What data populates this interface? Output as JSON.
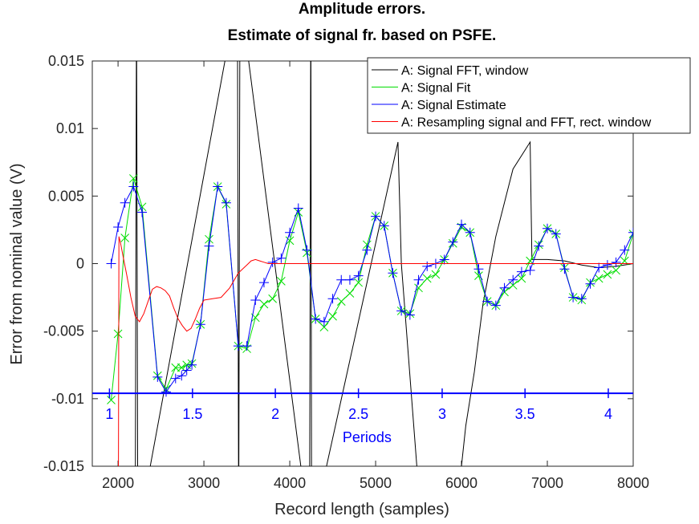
{
  "chart_data": {
    "type": "line",
    "title": [
      "Amplitude errors.",
      "Estimate of signal fr. based on PSFE."
    ],
    "xlabel": "Record length (samples)",
    "ylabel": "Error from nominal value (V)",
    "xlim": [
      1700,
      8000
    ],
    "ylim": [
      -0.015,
      0.015
    ],
    "xticks": [
      2000,
      3000,
      4000,
      5000,
      6000,
      7000,
      8000
    ],
    "xtick_labels": [
      "2000",
      "3000",
      "4000",
      "5000",
      "6000",
      "7000",
      "8000"
    ],
    "yticks": [
      -0.015,
      -0.01,
      -0.005,
      0,
      0.005,
      0.01,
      0.015
    ],
    "ytick_labels": [
      "-0.015",
      "-0.01",
      "-0.005",
      "0",
      "0.005",
      "0.01",
      "0.015"
    ],
    "legend_position": "top-right",
    "periods_axis": {
      "label": "Periods",
      "y": -0.0096,
      "ticks": [
        {
          "x": 1900,
          "label": "1"
        },
        {
          "x": 2867,
          "label": "1.5"
        },
        {
          "x": 3832,
          "label": "2"
        },
        {
          "x": 4800,
          "label": "2.5"
        },
        {
          "x": 5775,
          "label": "3"
        },
        {
          "x": 6740,
          "label": "3.5"
        },
        {
          "x": 7710,
          "label": "4"
        }
      ]
    },
    "series": [
      {
        "name": "A: Signal FFT, window",
        "color": "#000000",
        "marker": "none",
        "x": [
          2200,
          2215,
          2230,
          3390,
          3405,
          3420,
          4230,
          4245,
          4255,
          5260,
          5300,
          5480,
          5560,
          6000,
          6050,
          6150,
          6250,
          6400,
          6600,
          6800,
          6820,
          7000,
          7200,
          7400,
          7600,
          7800,
          8000
        ],
        "y": [
          -0.02,
          0.02,
          -0.02,
          0.02,
          -0.02,
          0.02,
          -0.02,
          0.02,
          -0.02,
          0.009,
          0.0,
          -0.015,
          -0.02,
          -0.015,
          -0.012,
          -0.008,
          -0.003,
          0.002,
          0.007,
          0.009,
          0.0003,
          0.0003,
          0.0002,
          -0.0001,
          -0.0003,
          -0.0002,
          0.0
        ]
      },
      {
        "name": "A: Signal Fit",
        "color": "#00dd00",
        "marker": "x",
        "x": [
          1920,
          2000,
          2080,
          2180,
          2280,
          2460,
          2560,
          2670,
          2740,
          2800,
          2860,
          2960,
          3060,
          3160,
          3260,
          3400,
          3500,
          3600,
          3700,
          3800,
          3900,
          4000,
          4100,
          4200,
          4300,
          4400,
          4500,
          4600,
          4700,
          4800,
          4900,
          5000,
          5100,
          5200,
          5300,
          5400,
          5500,
          5600,
          5700,
          5800,
          5900,
          6000,
          6100,
          6200,
          6300,
          6400,
          6500,
          6600,
          6700,
          6800,
          6900,
          7000,
          7100,
          7200,
          7300,
          7400,
          7500,
          7600,
          7700,
          7800,
          7900,
          8000
        ],
        "y": [
          -0.0101,
          -0.0052,
          0.0019,
          0.0063,
          0.0042,
          -0.0083,
          -0.0093,
          -0.0077,
          -0.0077,
          -0.0075,
          -0.0074,
          -0.0045,
          0.0018,
          0.0057,
          0.0044,
          -0.0061,
          -0.0063,
          -0.004,
          -0.003,
          -0.0026,
          -0.0013,
          0.0017,
          0.0038,
          0.0008,
          -0.0041,
          -0.0047,
          -0.0039,
          -0.0028,
          -0.0022,
          -0.0014,
          0.0014,
          0.0035,
          0.0028,
          -0.0007,
          -0.0035,
          -0.0037,
          -0.0018,
          -0.0011,
          -0.0008,
          0.0003,
          0.0015,
          0.0027,
          0.0023,
          -0.0009,
          -0.0028,
          -0.0031,
          -0.0021,
          -0.0016,
          -0.0011,
          0.0002,
          0.0014,
          0.0026,
          0.0022,
          -0.0003,
          -0.0025,
          -0.0027,
          -0.0014,
          -0.0011,
          -0.0008,
          -0.0005,
          0.0002,
          0.0022
        ]
      },
      {
        "name": "A: Signal Estimate",
        "color": "#0000ff",
        "marker": "+",
        "x": [
          1920,
          2000,
          2080,
          2180,
          2280,
          2460,
          2560,
          2670,
          2740,
          2800,
          2860,
          2960,
          3060,
          3160,
          3260,
          3400,
          3500,
          3600,
          3700,
          3800,
          3900,
          4000,
          4100,
          4200,
          4300,
          4400,
          4500,
          4600,
          4700,
          4800,
          4900,
          5000,
          5100,
          5200,
          5300,
          5400,
          5500,
          5600,
          5700,
          5800,
          5900,
          6000,
          6100,
          6200,
          6300,
          6400,
          6500,
          6600,
          6700,
          6800,
          6900,
          7000,
          7100,
          7200,
          7300,
          7400,
          7500,
          7600,
          7700,
          7800,
          7900,
          8000
        ],
        "y": [
          0.0,
          0.0027,
          0.0045,
          0.0057,
          0.0038,
          -0.0084,
          -0.0095,
          -0.0085,
          -0.0083,
          -0.0079,
          -0.0075,
          -0.0045,
          0.0013,
          0.0057,
          0.0045,
          -0.0061,
          -0.0061,
          -0.0027,
          -0.0014,
          0.0001,
          0.0004,
          0.0023,
          0.0041,
          0.001,
          -0.0041,
          -0.0043,
          -0.0026,
          -0.0012,
          -0.0012,
          -0.0009,
          0.001,
          0.0035,
          0.0028,
          -0.0007,
          -0.0035,
          -0.0038,
          -0.0012,
          -0.0002,
          0.0,
          0.0003,
          0.0016,
          0.0029,
          0.0023,
          -0.0004,
          -0.0028,
          -0.0031,
          -0.0018,
          -0.0012,
          -0.0006,
          -0.0005,
          0.0013,
          0.0026,
          0.0022,
          -0.0004,
          -0.0025,
          -0.0026,
          -0.0015,
          -0.0003,
          -0.0001,
          0.0001,
          0.001,
          0.0023
        ]
      },
      {
        "name": "A: Resampling signal and FFT, rect. window",
        "color": "#ff0000",
        "marker": "none",
        "x": [
          2005,
          2010,
          2030,
          2060,
          2100,
          2150,
          2200,
          2250,
          2300,
          2350,
          2400,
          2450,
          2500,
          2550,
          2600,
          2650,
          2700,
          2750,
          2800,
          2850,
          2900,
          2950,
          3000,
          3100,
          3200,
          3300,
          3400,
          3500,
          3550,
          3600,
          3650,
          3700,
          3750,
          3800,
          4000,
          5000,
          6000,
          7000,
          8000
        ],
        "y": [
          -0.015,
          0.002,
          0.0015,
          0.0005,
          -0.0008,
          -0.0025,
          -0.0039,
          -0.0043,
          -0.0037,
          -0.0028,
          -0.0019,
          -0.0017,
          -0.0018,
          -0.002,
          -0.0024,
          -0.0033,
          -0.0041,
          -0.0046,
          -0.005,
          -0.0048,
          -0.0041,
          -0.0033,
          -0.0027,
          -0.0026,
          -0.0025,
          -0.0018,
          -0.0007,
          -0.0001,
          0.0002,
          0.0003,
          0.0002,
          0.0001,
          0.0,
          0.0,
          0.0,
          0.0,
          0.0,
          0.0,
          0.0
        ]
      }
    ]
  }
}
